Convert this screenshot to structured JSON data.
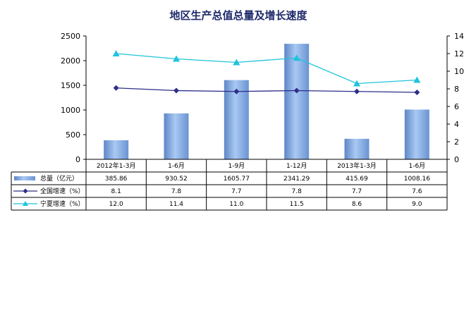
{
  "chart_data": {
    "type": "bar",
    "title": "地区生产总值总量及增长速度",
    "categories": [
      "2012年1-3月",
      "1-6月",
      "1-9月",
      "1-12月",
      "2013年1-3月",
      "1-6月"
    ],
    "y_left": {
      "ticks": [
        0,
        500,
        1000,
        1500,
        2000,
        2500
      ],
      "range": [
        0,
        2500
      ]
    },
    "y_right": {
      "ticks": [
        0,
        2,
        4,
        6,
        8,
        10,
        12,
        14
      ],
      "range": [
        0,
        14
      ]
    },
    "series": [
      {
        "name": "总量（亿元）",
        "type": "bar",
        "axis": "left",
        "values": [
          385.86,
          930.52,
          1605.77,
          2341.29,
          415.69,
          1008.16
        ],
        "labels": [
          "385.86",
          "930.52",
          "1605.77",
          "2341.29",
          "415.69",
          "1008.16"
        ],
        "color": "#7ea6dc"
      },
      {
        "name": "全国增速（%）",
        "type": "line",
        "axis": "right",
        "values": [
          8.1,
          7.8,
          7.7,
          7.8,
          7.7,
          7.6
        ],
        "labels": [
          "8.1",
          "7.8",
          "7.7",
          "7.8",
          "7.7",
          "7.6"
        ],
        "color": "#2e2e8a",
        "marker": "diamond"
      },
      {
        "name": "宁夏增速（%）",
        "type": "line",
        "axis": "right",
        "values": [
          12.0,
          11.4,
          11.0,
          11.5,
          8.6,
          9.0
        ],
        "labels": [
          "12.0",
          "11.4",
          "11.0",
          "11.5",
          "8.6",
          "9.0"
        ],
        "color": "#1fc3dc",
        "marker": "triangle"
      }
    ],
    "legend": "data-table-left",
    "grid": false
  }
}
